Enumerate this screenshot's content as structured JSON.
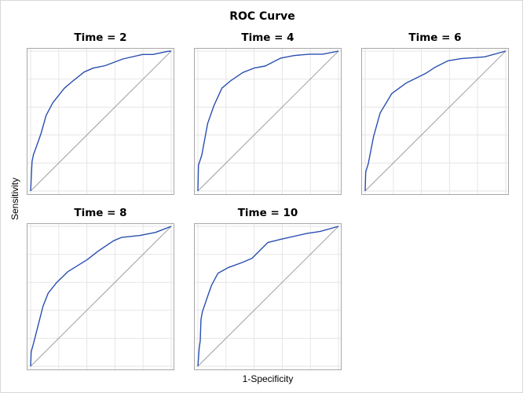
{
  "chart_data": {
    "type": "line",
    "title": "ROC Curve",
    "xlabel": "1-Specificity",
    "ylabel": "Sensitivity",
    "xlim": [
      0,
      1
    ],
    "ylim": [
      0,
      1
    ],
    "grid": true,
    "tick_labels_shown": false,
    "curve_color": "#2a4fb0",
    "reference_line_color": "#a0a0a0",
    "reference_line": "diagonal",
    "panels": [
      {
        "title": "Time = 2",
        "x": [
          0,
          0.01,
          0.02,
          0.046,
          0.074,
          0.11,
          0.157,
          0.24,
          0.305,
          0.38,
          0.444,
          0.53,
          0.657,
          0.796,
          0.87,
          0.972,
          1
        ],
        "y": [
          0,
          0.21,
          0.26,
          0.33,
          0.41,
          0.54,
          0.63,
          0.735,
          0.79,
          0.85,
          0.878,
          0.896,
          0.944,
          0.976,
          0.976,
          0.998,
          1
        ]
      },
      {
        "title": "Time = 4",
        "x": [
          0,
          0.004,
          0.028,
          0.069,
          0.115,
          0.171,
          0.236,
          0.32,
          0.404,
          0.479,
          0.59,
          0.683,
          0.795,
          0.888,
          1
        ],
        "y": [
          0,
          0.183,
          0.258,
          0.482,
          0.613,
          0.735,
          0.79,
          0.847,
          0.88,
          0.893,
          0.95,
          0.968,
          0.978,
          0.978,
          1
        ]
      },
      {
        "title": "Time = 6",
        "x": [
          0,
          0.004,
          0.022,
          0.06,
          0.106,
          0.19,
          0.292,
          0.432,
          0.497,
          0.59,
          0.683,
          0.851,
          1
        ],
        "y": [
          0,
          0.136,
          0.193,
          0.389,
          0.557,
          0.697,
          0.772,
          0.841,
          0.884,
          0.931,
          0.946,
          0.959,
          1
        ]
      },
      {
        "title": "Time = 8",
        "x": [
          0,
          0.004,
          0.022,
          0.05,
          0.088,
          0.125,
          0.181,
          0.264,
          0.404,
          0.479,
          0.59,
          0.646,
          0.777,
          0.888,
          1
        ],
        "y": [
          0,
          0.103,
          0.168,
          0.28,
          0.43,
          0.523,
          0.594,
          0.676,
          0.763,
          0.822,
          0.897,
          0.921,
          0.935,
          0.957,
          1
        ]
      },
      {
        "title": "Time = 10",
        "x": [
          0,
          0.009,
          0.017,
          0.022,
          0.032,
          0.069,
          0.097,
          0.143,
          0.218,
          0.32,
          0.385,
          0.497,
          0.59,
          0.777,
          0.87,
          1
        ],
        "y": [
          0,
          0.127,
          0.183,
          0.333,
          0.389,
          0.5,
          0.579,
          0.665,
          0.706,
          0.744,
          0.772,
          0.884,
          0.908,
          0.95,
          0.964,
          1
        ]
      }
    ]
  }
}
